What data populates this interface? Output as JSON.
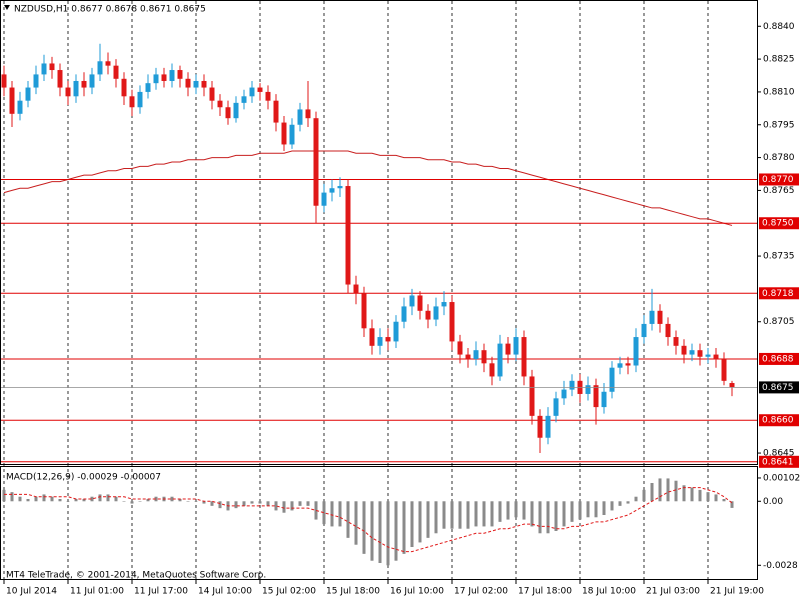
{
  "chart_data": [
    {
      "type": "candlestick",
      "title": "NZDUSD,H1 0.8677 0.8678 0.8671 0.8675",
      "categories": [
        "10 Jul 2014",
        null,
        null,
        null,
        null,
        null,
        null,
        null,
        "11 Jul 01:00",
        null,
        null,
        null,
        null,
        null,
        null,
        null,
        "11 Jul 17:00",
        null,
        null,
        null,
        null,
        null,
        null,
        null,
        "14 Jul 10:00",
        null,
        null,
        null,
        null,
        null,
        null,
        null,
        "15 Jul 02:00",
        null,
        null,
        null,
        null,
        null,
        null,
        null,
        "15 Jul 18:00",
        null,
        null,
        null,
        null,
        null,
        null,
        null,
        "16 Jul 10:00",
        null,
        null,
        null,
        null,
        null,
        null,
        null,
        "17 Jul 02:00",
        null,
        null,
        null,
        null,
        null,
        null,
        null,
        "17 Jul 18:00",
        null,
        null,
        null,
        null,
        null,
        null,
        null,
        "18 Jul 10:00",
        null,
        null,
        null,
        null,
        null,
        null,
        null,
        "21 Jul 03:00",
        null,
        null,
        null,
        null,
        null,
        null,
        null,
        "21 Jul 19:00",
        null,
        null,
        null
      ],
      "open": [
        0.8818,
        0.8812,
        0.88,
        0.8806,
        0.8812,
        0.8818,
        0.8823,
        0.882,
        0.8812,
        0.8808,
        0.8815,
        0.8812,
        0.8818,
        0.8824,
        0.8822,
        0.8816,
        0.8808,
        0.8803,
        0.881,
        0.8814,
        0.8818,
        0.8815,
        0.882,
        0.8816,
        0.8812,
        0.8815,
        0.8812,
        0.8806,
        0.8803,
        0.8798,
        0.8805,
        0.8808,
        0.8812,
        0.881,
        0.8806,
        0.8796,
        0.8786,
        0.8795,
        0.8802,
        0.8798,
        0.8758,
        0.8764,
        0.8766,
        0.8767,
        0.8722,
        0.8718,
        0.8702,
        0.8694,
        0.8698,
        0.8696,
        0.8705,
        0.8712,
        0.8717,
        0.871,
        0.8706,
        0.8712,
        0.8714,
        0.8696,
        0.869,
        0.8688,
        0.8692,
        0.8686,
        0.868,
        0.8695,
        0.869,
        0.8698,
        0.868,
        0.8662,
        0.8652,
        0.8662,
        0.867,
        0.8674,
        0.8678,
        0.8672,
        0.8676,
        0.8666,
        0.8673,
        0.8684,
        0.8686,
        0.8685,
        0.8698,
        0.8704,
        0.871,
        0.8704,
        0.8698,
        0.8694,
        0.869,
        0.8692,
        0.8689,
        0.869,
        0.8688,
        0.8677
      ],
      "high": [
        0.8822,
        0.8815,
        0.881,
        0.8815,
        0.8822,
        0.8827,
        0.8826,
        0.8823,
        0.8815,
        0.8818,
        0.8819,
        0.8821,
        0.8832,
        0.8828,
        0.8825,
        0.8819,
        0.8811,
        0.8813,
        0.8818,
        0.8821,
        0.8821,
        0.8823,
        0.8822,
        0.8819,
        0.8818,
        0.8818,
        0.8815,
        0.8809,
        0.8806,
        0.8808,
        0.8811,
        0.8815,
        0.8814,
        0.8813,
        0.8809,
        0.8799,
        0.8798,
        0.8805,
        0.8815,
        0.8801,
        0.8768,
        0.877,
        0.8771,
        0.877,
        0.8726,
        0.8721,
        0.8706,
        0.8702,
        0.8702,
        0.8708,
        0.8716,
        0.872,
        0.8719,
        0.8713,
        0.8716,
        0.8719,
        0.8717,
        0.8699,
        0.8693,
        0.8696,
        0.8695,
        0.8689,
        0.8699,
        0.8698,
        0.8702,
        0.8701,
        0.8683,
        0.8665,
        0.8666,
        0.8673,
        0.8678,
        0.8681,
        0.8681,
        0.868,
        0.8679,
        0.8677,
        0.8687,
        0.8689,
        0.8689,
        0.8702,
        0.8708,
        0.872,
        0.8713,
        0.8707,
        0.8701,
        0.8697,
        0.8695,
        0.8695,
        0.8693,
        0.8693,
        0.8691,
        0.8678
      ],
      "low": [
        0.8808,
        0.8794,
        0.8797,
        0.8803,
        0.8809,
        0.8815,
        0.8816,
        0.8808,
        0.8804,
        0.8805,
        0.8808,
        0.8809,
        0.8815,
        0.8818,
        0.8812,
        0.8804,
        0.8799,
        0.88,
        0.8807,
        0.8811,
        0.8812,
        0.8812,
        0.8812,
        0.8808,
        0.8809,
        0.8808,
        0.8802,
        0.8799,
        0.8795,
        0.8796,
        0.8802,
        0.8805,
        0.8806,
        0.8802,
        0.8792,
        0.8783,
        0.8784,
        0.8792,
        0.8794,
        0.875,
        0.8755,
        0.876,
        0.8762,
        0.8718,
        0.8713,
        0.8698,
        0.869,
        0.869,
        0.8692,
        0.8693,
        0.8702,
        0.8708,
        0.8706,
        0.8702,
        0.8703,
        0.8708,
        0.8692,
        0.8686,
        0.8684,
        0.8685,
        0.8682,
        0.8676,
        0.8678,
        0.8686,
        0.8687,
        0.8676,
        0.8658,
        0.8645,
        0.8649,
        0.8659,
        0.8667,
        0.8671,
        0.8668,
        0.8669,
        0.8658,
        0.8663,
        0.867,
        0.8681,
        0.8681,
        0.8682,
        0.8695,
        0.8701,
        0.87,
        0.8694,
        0.869,
        0.8686,
        0.8687,
        0.8685,
        0.8686,
        0.8684,
        0.8676,
        0.8671
      ],
      "close": [
        0.8812,
        0.88,
        0.8806,
        0.8812,
        0.8818,
        0.8823,
        0.882,
        0.8812,
        0.8808,
        0.8815,
        0.8812,
        0.8818,
        0.8824,
        0.8822,
        0.8816,
        0.8808,
        0.8803,
        0.881,
        0.8814,
        0.8818,
        0.8815,
        0.882,
        0.8816,
        0.8812,
        0.8815,
        0.8812,
        0.8806,
        0.8803,
        0.8798,
        0.8805,
        0.8808,
        0.8812,
        0.881,
        0.8806,
        0.8796,
        0.8786,
        0.8795,
        0.8802,
        0.8798,
        0.8758,
        0.8764,
        0.8766,
        0.8767,
        0.8722,
        0.8718,
        0.8702,
        0.8694,
        0.8698,
        0.8696,
        0.8705,
        0.8712,
        0.8717,
        0.871,
        0.8706,
        0.8712,
        0.8714,
        0.8696,
        0.869,
        0.8688,
        0.8692,
        0.8686,
        0.868,
        0.8695,
        0.869,
        0.8698,
        0.868,
        0.8662,
        0.8652,
        0.8662,
        0.867,
        0.8674,
        0.8678,
        0.8672,
        0.8676,
        0.8666,
        0.8673,
        0.8684,
        0.8686,
        0.8685,
        0.8698,
        0.8704,
        0.871,
        0.8704,
        0.8698,
        0.8694,
        0.869,
        0.8692,
        0.8689,
        0.869,
        0.8688,
        0.8678,
        0.8675
      ],
      "bull_color": "#1f9bd7",
      "bear_color": "#e01818",
      "moving_average": {
        "color": "#c81e1e",
        "values": [
          0.8764,
          0.8765,
          0.8766,
          0.8766,
          0.8767,
          0.8768,
          0.8769,
          0.8769,
          0.877,
          0.8771,
          0.8772,
          0.8772,
          0.8773,
          0.8774,
          0.8774,
          0.8775,
          0.8775,
          0.8776,
          0.8776,
          0.8777,
          0.8777,
          0.8778,
          0.8778,
          0.8779,
          0.8779,
          0.8779,
          0.878,
          0.878,
          0.878,
          0.8781,
          0.8781,
          0.8781,
          0.8782,
          0.8782,
          0.8782,
          0.8782,
          0.8783,
          0.8783,
          0.8783,
          0.8783,
          0.8783,
          0.8783,
          0.8783,
          0.8783,
          0.8782,
          0.8782,
          0.8782,
          0.8781,
          0.8781,
          0.8781,
          0.878,
          0.878,
          0.878,
          0.8779,
          0.8779,
          0.8779,
          0.8778,
          0.8778,
          0.8777,
          0.8777,
          0.8776,
          0.8776,
          0.8775,
          0.8775,
          0.8774,
          0.8773,
          0.8772,
          0.8771,
          0.877,
          0.8769,
          0.8768,
          0.8767,
          0.8766,
          0.8765,
          0.8764,
          0.8763,
          0.8762,
          0.8761,
          0.876,
          0.8759,
          0.8758,
          0.8757,
          0.8757,
          0.8756,
          0.8755,
          0.8754,
          0.8753,
          0.8752,
          0.8752,
          0.8751,
          0.875,
          0.8749
        ]
      },
      "levels": [
        {
          "value": 0.877,
          "label": "0.8770"
        },
        {
          "value": 0.875,
          "label": "0.8750"
        },
        0.8718,
        0.8688,
        {
          "value": 0.866,
          "label": "0.8660"
        },
        0.8641
      ],
      "level_color": "#e00000",
      "last_price": 0.8675,
      "ylim": [
        0.864,
        0.8852
      ],
      "yticks": [
        {
          "value": 0.884,
          "label": "0.8840"
        },
        0.8825,
        {
          "value": 0.881,
          "label": "0.8810"
        },
        0.8795,
        {
          "value": 0.878,
          "label": "0.8780"
        },
        0.8765,
        0.8735,
        0.8705,
        0.8645
      ],
      "grid": true
    },
    {
      "type": "bar",
      "title": "MACD(12,26,9) -0.00029 -0.00007",
      "values": [
        0.0005,
        0.0004,
        0.0002,
        0.0001,
        0.0002,
        0.0003,
        0.0002,
        0.0001,
        0,
        0.0001,
        0.0001,
        0.0002,
        0.0003,
        0.0003,
        0.0002,
        0,
        -0.0001,
        0,
        0.0001,
        0.0002,
        0.0002,
        0.0002,
        0.0001,
        0,
        0,
        -0.0001,
        -0.0002,
        -0.0003,
        -0.0004,
        -0.0003,
        -0.0002,
        -0.0001,
        -0.0001,
        -0.0002,
        -0.0004,
        -0.0005,
        -0.0004,
        -0.0002,
        -0.0002,
        -0.0008,
        -0.001,
        -0.0011,
        -0.0011,
        -0.0016,
        -0.0019,
        -0.0023,
        -0.0026,
        -0.0027,
        -0.0028,
        -0.0026,
        -0.0023,
        -0.002,
        -0.0018,
        -0.0016,
        -0.0014,
        -0.0012,
        -0.0012,
        -0.0012,
        -0.0012,
        -0.0011,
        -0.0011,
        -0.0011,
        -0.0009,
        -0.0008,
        -0.0007,
        -0.0008,
        -0.0011,
        -0.0014,
        -0.0014,
        -0.0013,
        -0.0011,
        -0.0009,
        -0.0008,
        -0.0007,
        -0.0007,
        -0.0006,
        -0.0004,
        -0.0002,
        -0.0001,
        0.0002,
        0.0005,
        0.0008,
        0.001,
        0.001,
        0.0009,
        0.0007,
        0.0006,
        0.0005,
        0.0004,
        0.0003,
        0.0001,
        -0.00029
      ],
      "color": "#8a8a8a",
      "signal": {
        "color": "#e01818",
        "values": [
          0.0003,
          0.0003,
          0.0003,
          0.0003,
          0.0002,
          0.0002,
          0.0002,
          0.0002,
          0.0002,
          0.0001,
          0.0001,
          0.0001,
          0.0002,
          0.0002,
          0.0002,
          0.0002,
          0.0001,
          0.0001,
          0.0001,
          0.0001,
          0.0001,
          0.0001,
          0.0001,
          0.0001,
          0.0001,
          0,
          0,
          -0.0001,
          -0.0002,
          -0.0002,
          -0.0002,
          -0.0002,
          -0.0002,
          -0.0002,
          -0.0002,
          -0.0003,
          -0.0003,
          -0.0003,
          -0.0003,
          -0.0004,
          -0.0005,
          -0.0006,
          -0.0007,
          -0.0009,
          -0.0011,
          -0.0013,
          -0.0016,
          -0.0018,
          -0.002,
          -0.0021,
          -0.0022,
          -0.0022,
          -0.0021,
          -0.002,
          -0.0019,
          -0.0018,
          -0.0017,
          -0.0016,
          -0.0015,
          -0.0014,
          -0.0014,
          -0.0013,
          -0.0012,
          -0.0012,
          -0.0011,
          -0.001,
          -0.001,
          -0.0011,
          -0.0011,
          -0.0012,
          -0.0012,
          -0.0011,
          -0.0011,
          -0.001,
          -0.0009,
          -0.0009,
          -0.0008,
          -0.0007,
          -0.0006,
          -0.0004,
          -0.0002,
          0,
          0.0002,
          0.0004,
          0.0005,
          0.0006,
          0.0006,
          0.0006,
          0.0005,
          0.0004,
          0.0002,
          -7e-05
        ]
      },
      "annotation": "MT4 TeleTrade, © 2001-2014, MetaQuotes Software Corp.",
      "ylim": [
        -0.0034,
        0.0015
      ],
      "yticks": [
        0.00102,
        {
          "value": 0,
          "label": "0.00"
        },
        -0.0028
      ]
    }
  ]
}
